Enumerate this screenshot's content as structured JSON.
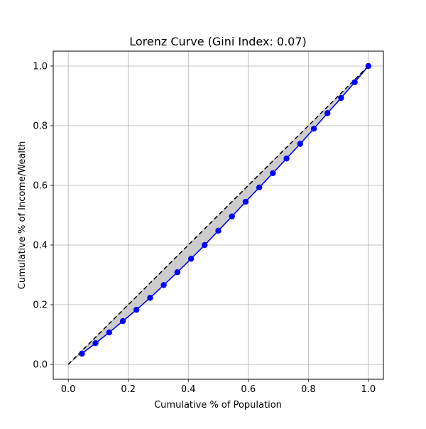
{
  "chart_data": {
    "type": "line",
    "title": "Lorenz Curve (Gini Index: 0.07)",
    "xlabel": "Cumulative % of Population",
    "ylabel": "Cumulative % of Income/Wealth",
    "xlim": [
      -0.05,
      1.05
    ],
    "ylim": [
      -0.05,
      1.05
    ],
    "xticks": [
      0.0,
      0.2,
      0.4,
      0.6,
      0.8,
      1.0
    ],
    "yticks": [
      0.0,
      0.2,
      0.4,
      0.6,
      0.8,
      1.0
    ],
    "xtick_labels": [
      "0.0",
      "0.2",
      "0.4",
      "0.6",
      "0.8",
      "1.0"
    ],
    "ytick_labels": [
      "0.0",
      "0.2",
      "0.4",
      "0.6",
      "0.8",
      "1.0"
    ],
    "grid": true,
    "series": [
      {
        "style": "line-with-markers",
        "color": "#0000ff",
        "x": [
          0.0455,
          0.0909,
          0.1364,
          0.1818,
          0.2273,
          0.2727,
          0.3182,
          0.3636,
          0.4091,
          0.4545,
          0.5,
          0.5455,
          0.5909,
          0.6364,
          0.6818,
          0.7273,
          0.7727,
          0.8182,
          0.8636,
          0.9091,
          0.9545,
          1.0
        ],
        "y": [
          0.036,
          0.071,
          0.107,
          0.145,
          0.183,
          0.223,
          0.266,
          0.309,
          0.354,
          0.4,
          0.448,
          0.496,
          0.545,
          0.593,
          0.641,
          0.69,
          0.739,
          0.79,
          0.842,
          0.893,
          0.946,
          1.0
        ]
      },
      {
        "style": "dashed-line",
        "color": "#000000",
        "x": [
          0.0,
          1.0
        ],
        "y": [
          0.0,
          1.0
        ]
      }
    ],
    "fill_between": {
      "color": "#cccccc",
      "between": "line-of-equality and lorenz curve"
    }
  }
}
